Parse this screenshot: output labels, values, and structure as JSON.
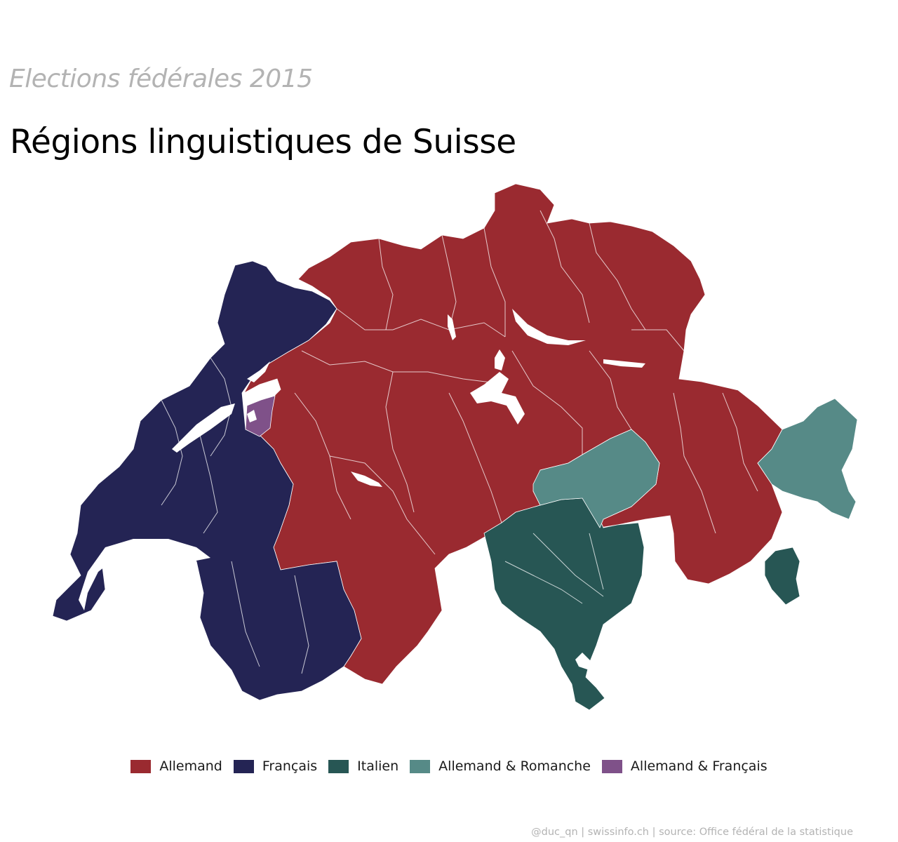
{
  "header": {
    "subtitle": "Elections fédérales 2015",
    "title": "Régions linguistiques de Suisse"
  },
  "legend": [
    {
      "label": "Allemand",
      "color": "#9a2a30"
    },
    {
      "label": "Français",
      "color": "#242454"
    },
    {
      "label": "Italien",
      "color": "#275654"
    },
    {
      "label": "Allemand & Romanche",
      "color": "#568a87"
    },
    {
      "label": "Allemand & Français",
      "color": "#7f5189"
    }
  ],
  "footer": {
    "credit": "@duc_qn | swissinfo.ch | source: Office fédéral de la statistique"
  }
}
